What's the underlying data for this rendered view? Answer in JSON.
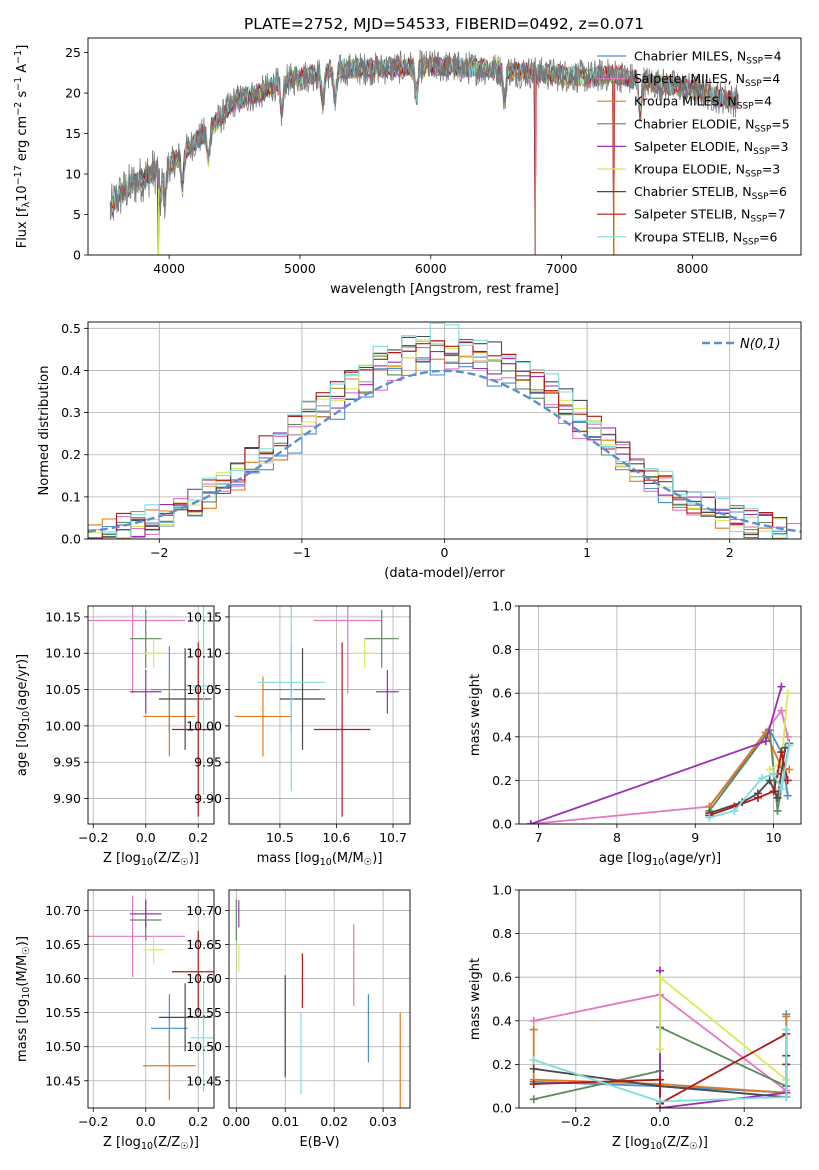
{
  "figure_title": "PLATE=2752, MJD=54533, FIBERID=0492, z=0.071",
  "chart_data": [
    {
      "id": "spectrum",
      "type": "line",
      "title": "PLATE=2752, MJD=54533, FIBERID=0492, z=0.071",
      "xlabel": "wavelength [Angstrom, rest frame]",
      "ylabel": "Flux [fλ10⁻¹⁷ erg cm⁻² s⁻¹ A⁻¹]",
      "xlim": [
        3380,
        8830
      ],
      "ylim": [
        0,
        26.8
      ],
      "xticks": [
        4000,
        5000,
        6000,
        7000,
        8000
      ],
      "yticks": [
        0,
        5,
        10,
        15,
        20,
        25
      ],
      "grid": false,
      "legend_position": "right",
      "continuum": [
        [
          3550,
          5.5
        ],
        [
          3600,
          7
        ],
        [
          3700,
          8.5
        ],
        [
          3800,
          9.5
        ],
        [
          3900,
          10.5
        ],
        [
          4000,
          11
        ],
        [
          4100,
          12.5
        ],
        [
          4200,
          14
        ],
        [
          4300,
          15.5
        ],
        [
          4400,
          17
        ],
        [
          4500,
          19
        ],
        [
          4600,
          19.5
        ],
        [
          4700,
          20
        ],
        [
          4800,
          21
        ],
        [
          4900,
          21.5
        ],
        [
          5000,
          22
        ],
        [
          5200,
          22.5
        ],
        [
          5400,
          23
        ],
        [
          5600,
          23
        ],
        [
          5800,
          23.2
        ],
        [
          6000,
          23.3
        ],
        [
          6200,
          23.2
        ],
        [
          6400,
          23
        ],
        [
          6600,
          22.8
        ],
        [
          6800,
          22.5
        ],
        [
          7000,
          22.2
        ],
        [
          7200,
          22
        ],
        [
          7400,
          22.3
        ],
        [
          7600,
          21.5
        ],
        [
          7800,
          21
        ],
        [
          8000,
          20.5
        ],
        [
          8200,
          19.5
        ],
        [
          8350,
          19
        ]
      ],
      "absorption_features": [
        [
          3934,
          9.5
        ],
        [
          3969,
          9
        ],
        [
          4102,
          12
        ],
        [
          4300,
          13.8
        ],
        [
          4861,
          18.2
        ],
        [
          5175,
          19.8
        ],
        [
          5270,
          21
        ],
        [
          5890,
          19.5
        ],
        [
          6563,
          20.6
        ],
        [
          7600,
          19.3
        ]
      ],
      "model_dropouts": [
        [
          3920,
          0
        ],
        [
          6800,
          0
        ],
        [
          7400,
          0
        ]
      ],
      "series": [
        {
          "name": "Chabrier MILES, N_SSP=4",
          "label_main": "Chabrier MILES, N",
          "label_sub": "SSP",
          "label_tail": "=4",
          "color": "#4a8fd0"
        },
        {
          "name": "Salpeter MILES, N_SSP=4",
          "label_main": "Salpeter MILES, N",
          "label_sub": "SSP",
          "label_tail": "=4",
          "color": "#e377c2"
        },
        {
          "name": "Kroupa MILES, N_SSP=4",
          "label_main": "Kroupa MILES, N",
          "label_sub": "SSP",
          "label_tail": "=4",
          "color": "#e07b1f"
        },
        {
          "name": "Chabrier ELODIE, N_SSP=5",
          "label_main": "Chabrier ELODIE, N",
          "label_sub": "SSP",
          "label_tail": "=5",
          "color": "#5b8a5e"
        },
        {
          "name": "Salpeter ELODIE, N_SSP=3",
          "label_main": "Salpeter ELODIE, N",
          "label_sub": "SSP",
          "label_tail": "=3",
          "color": "#9a30b0"
        },
        {
          "name": "Kroupa ELODIE, N_SSP=3",
          "label_main": "Kroupa ELODIE, N",
          "label_sub": "SSP",
          "label_tail": "=3",
          "color": "#d8ea5a"
        },
        {
          "name": "Chabrier STELIB, N_SSP=6",
          "label_main": "Chabrier STELIB, N",
          "label_sub": "SSP",
          "label_tail": "=6",
          "color": "#4a4a4a"
        },
        {
          "name": "Salpeter STELIB, N_SSP=7",
          "label_main": "Salpeter STELIB, N",
          "label_sub": "SSP",
          "label_tail": "=7",
          "color": "#b11a1a"
        },
        {
          "name": "Kroupa STELIB, N_SSP=6",
          "label_main": "Kroupa STELIB, N",
          "label_sub": "SSP",
          "label_tail": "=6",
          "color": "#7fdde0"
        }
      ]
    },
    {
      "id": "residuals",
      "type": "line",
      "xlabel": "(data-model)/error",
      "ylabel": "Normed distribution",
      "xlim": [
        -2.5,
        2.5
      ],
      "ylim": [
        0,
        0.515
      ],
      "xticks": [
        -2,
        -1,
        0,
        1,
        2
      ],
      "yticks": [
        0.0,
        0.1,
        0.2,
        0.3,
        0.4,
        0.5
      ],
      "grid": true,
      "legend_position": "top-right",
      "reference_label": "N(0,1)",
      "reference_color": "#5b8fd0",
      "histogram_bin_width": 0.1
    },
    {
      "id": "age_vs_Z",
      "type": "scatter",
      "xlabel": "Z [log10(Z/Z☉)]",
      "ylabel": "age  [log10(age/yr)]",
      "xlim": [
        -0.22,
        0.26
      ],
      "ylim": [
        9.865,
        10.165
      ],
      "xticks": [
        -0.2,
        0.0,
        0.2
      ],
      "yticks": [
        9.9,
        9.95,
        10.0,
        10.05,
        10.1,
        10.15
      ],
      "grid": true,
      "points": [
        {
          "x": 0.09,
          "y": 10.05,
          "xerr": 0.07,
          "yerr": 0.06
        },
        {
          "x": -0.05,
          "y": 10.145,
          "xerr": 0.2,
          "yerr": 0.1
        },
        {
          "x": 0.09,
          "y": 10.013,
          "xerr": 0.1,
          "yerr": 0.055
        },
        {
          "x": -0.0,
          "y": 10.12,
          "xerr": 0.06,
          "yerr": 0.04
        },
        {
          "x": -0.0,
          "y": 10.047,
          "xerr": 0.06,
          "yerr": 0.03
        },
        {
          "x": 0.03,
          "y": 10.1,
          "xerr": 0.04,
          "yerr": 0.02
        },
        {
          "x": 0.15,
          "y": 10.037,
          "xerr": 0.1,
          "yerr": 0.07
        },
        {
          "x": 0.2,
          "y": 9.995,
          "xerr": 0.1,
          "yerr": 0.12
        },
        {
          "x": 0.22,
          "y": 10.055,
          "xerr": 0.05,
          "yerr": 0.15
        }
      ]
    },
    {
      "id": "age_vs_mass",
      "type": "scatter",
      "xlabel": "mass [log10(M/M☉)]",
      "ylabel": "",
      "xlim": [
        10.41,
        10.73
      ],
      "ylim": [
        9.865,
        10.165
      ],
      "xticks": [
        10.5,
        10.6,
        10.7
      ],
      "yticks": [
        9.9,
        9.95,
        10.0,
        10.05,
        10.1,
        10.15
      ],
      "grid": true,
      "points": [
        {
          "x": 10.52,
          "y": 10.05,
          "xerr": 0.05,
          "yerr": 0.06
        },
        {
          "x": 10.62,
          "y": 10.145,
          "xerr": 0.06,
          "yerr": 0.1
        },
        {
          "x": 10.47,
          "y": 10.013,
          "xerr": 0.05,
          "yerr": 0.055
        },
        {
          "x": 10.68,
          "y": 10.12,
          "xerr": 0.03,
          "yerr": 0.04
        },
        {
          "x": 10.69,
          "y": 10.047,
          "xerr": 0.02,
          "yerr": 0.03
        },
        {
          "x": 10.65,
          "y": 10.1,
          "xerr": 0.02,
          "yerr": 0.02
        },
        {
          "x": 10.54,
          "y": 10.037,
          "xerr": 0.04,
          "yerr": 0.07
        },
        {
          "x": 10.61,
          "y": 9.995,
          "xerr": 0.05,
          "yerr": 0.12
        },
        {
          "x": 10.52,
          "y": 10.06,
          "xerr": 0.06,
          "yerr": 0.15
        }
      ]
    },
    {
      "id": "weight_vs_age",
      "type": "line",
      "xlabel": "age  [log10(age/yr)]",
      "ylabel": "mass weight",
      "xlim": [
        6.75,
        10.35
      ],
      "ylim": [
        0,
        1.0
      ],
      "xticks": [
        7,
        8,
        9,
        10
      ],
      "yticks": [
        0.0,
        0.2,
        0.4,
        0.6,
        0.8,
        1.0
      ],
      "grid": true,
      "series": [
        {
          "points": [
            [
              9.18,
              0.08
            ],
            [
              9.95,
              0.43
            ],
            [
              10.1,
              0.33
            ],
            [
              10.18,
              0.13
            ]
          ]
        },
        {
          "points": [
            [
              6.9,
              0.0
            ],
            [
              9.18,
              0.08
            ],
            [
              10.1,
              0.52
            ],
            [
              10.18,
              0.4
            ]
          ]
        },
        {
          "points": [
            [
              9.18,
              0.08
            ],
            [
              9.9,
              0.42
            ],
            [
              10.1,
              0.26
            ],
            [
              10.2,
              0.25
            ]
          ]
        },
        {
          "points": [
            [
              9.18,
              0.06
            ],
            [
              9.95,
              0.43
            ],
            [
              10.05,
              0.06
            ],
            [
              10.2,
              0.37
            ]
          ]
        },
        {
          "points": [
            [
              6.9,
              0.0
            ],
            [
              9.9,
              0.38
            ],
            [
              10.1,
              0.63
            ]
          ]
        },
        {
          "points": [
            [
              9.95,
              0.25
            ],
            [
              10.1,
              0.28
            ],
            [
              10.18,
              0.6
            ]
          ]
        },
        {
          "points": [
            [
              9.18,
              0.05
            ],
            [
              9.6,
              0.1
            ],
            [
              9.8,
              0.14
            ],
            [
              9.95,
              0.2
            ],
            [
              10.05,
              0.12
            ],
            [
              10.15,
              0.35
            ]
          ]
        },
        {
          "points": [
            [
              9.18,
              0.04
            ],
            [
              9.5,
              0.08
            ],
            [
              9.8,
              0.12
            ],
            [
              10.0,
              0.15
            ],
            [
              10.05,
              0.23
            ],
            [
              10.1,
              0.33
            ],
            [
              10.18,
              0.2
            ]
          ]
        },
        {
          "points": [
            [
              9.18,
              0.03
            ],
            [
              9.5,
              0.06
            ],
            [
              9.85,
              0.21
            ],
            [
              10.0,
              0.23
            ],
            [
              10.1,
              0.16
            ],
            [
              10.2,
              0.36
            ]
          ]
        }
      ]
    },
    {
      "id": "mass_vs_Z",
      "type": "scatter",
      "xlabel": "Z [log10(Z/Z☉)]",
      "ylabel": "mass [log10(M/M☉)]",
      "xlim": [
        -0.22,
        0.26
      ],
      "ylim": [
        10.41,
        10.73
      ],
      "xticks": [
        -0.2,
        0.0,
        0.2
      ],
      "yticks": [
        10.45,
        10.5,
        10.55,
        10.6,
        10.65,
        10.7
      ],
      "grid": true,
      "points": [
        {
          "x": 0.09,
          "y": 10.527,
          "xerr": 0.07,
          "yerr": 0.05
        },
        {
          "x": -0.05,
          "y": 10.662,
          "xerr": 0.2,
          "yerr": 0.06
        },
        {
          "x": 0.09,
          "y": 10.472,
          "xerr": 0.1,
          "yerr": 0.05
        },
        {
          "x": -0.0,
          "y": 10.686,
          "xerr": 0.06,
          "yerr": 0.03
        },
        {
          "x": -0.0,
          "y": 10.695,
          "xerr": 0.06,
          "yerr": 0.02
        },
        {
          "x": 0.03,
          "y": 10.642,
          "xerr": 0.04,
          "yerr": 0.02
        },
        {
          "x": 0.15,
          "y": 10.543,
          "xerr": 0.1,
          "yerr": 0.05
        },
        {
          "x": 0.2,
          "y": 10.61,
          "xerr": 0.1,
          "yerr": 0.06
        },
        {
          "x": 0.22,
          "y": 10.513,
          "xerr": 0.05,
          "yerr": 0.08
        }
      ]
    },
    {
      "id": "mass_vs_ebv",
      "type": "scatter",
      "xlabel": "E(B-V)",
      "ylabel": "",
      "xlim": [
        -0.0015,
        0.0355
      ],
      "ylim": [
        10.41,
        10.73
      ],
      "xticks": [
        0.0,
        0.01,
        0.02,
        0.03
      ],
      "yticks": [
        10.45,
        10.5,
        10.55,
        10.6,
        10.65,
        10.7
      ],
      "grid": true,
      "points": [
        {
          "x": 0.027,
          "y": 10.527,
          "xerr": 0,
          "yerr": 0.05
        },
        {
          "x": 0.024,
          "y": 10.62,
          "xerr": 0,
          "yerr": 0.06
        },
        {
          "x": 0.0335,
          "y": 10.48,
          "xerr": 0,
          "yerr": 0.07
        },
        {
          "x": 0.0,
          "y": 10.686,
          "xerr": 0,
          "yerr": 0.03
        },
        {
          "x": 0.0005,
          "y": 10.695,
          "xerr": 0,
          "yerr": 0.02
        },
        {
          "x": 0.0005,
          "y": 10.63,
          "xerr": 0,
          "yerr": 0.02
        },
        {
          "x": 0.01,
          "y": 10.53,
          "xerr": 0,
          "yerr": 0.075
        },
        {
          "x": 0.0135,
          "y": 10.597,
          "xerr": 0,
          "yerr": 0.04
        },
        {
          "x": 0.0132,
          "y": 10.49,
          "xerr": 0,
          "yerr": 0.06
        }
      ]
    },
    {
      "id": "weight_vs_Z",
      "type": "line",
      "xlabel": "Z [log10(Z/Z☉)]",
      "ylabel": "mass weight",
      "xlim": [
        -0.335,
        0.335
      ],
      "ylim": [
        0,
        1.0
      ],
      "xticks": [
        -0.2,
        0.0,
        0.2
      ],
      "yticks": [
        0.0,
        0.2,
        0.4,
        0.6,
        0.8,
        1.0
      ],
      "grid": true,
      "series": [
        {
          "points": [
            [
              -0.3,
              0.12
            ],
            [
              0.0,
              0.1
            ],
            [
              0.3,
              0.07
            ],
            [
              0.3,
              0.43
            ]
          ]
        },
        {
          "points": [
            [
              -0.3,
              0.4
            ],
            [
              0.0,
              0.52
            ],
            [
              0.3,
              0.08
            ]
          ]
        },
        {
          "points": [
            [
              -0.3,
              0.36
            ],
            [
              -0.3,
              0.13
            ],
            [
              0.0,
              0.11
            ],
            [
              0.3,
              0.07
            ],
            [
              0.3,
              0.42
            ]
          ]
        },
        {
          "points": [
            [
              -0.3,
              0.04
            ],
            [
              0.0,
              0.17
            ],
            [
              0.0,
              0.37
            ],
            [
              0.3,
              0.1
            ]
          ]
        },
        {
          "points": [
            [
              0.0,
              0.63
            ],
            [
              0.0,
              0.0
            ],
            [
              0.3,
              0.07
            ]
          ]
        },
        {
          "points": [
            [
              0.0,
              0.27
            ],
            [
              0.0,
              0.6
            ],
            [
              0.3,
              0.13
            ]
          ]
        },
        {
          "points": [
            [
              -0.3,
              0.18
            ],
            [
              0.0,
              0.1
            ],
            [
              0.3,
              0.05
            ],
            [
              0.3,
              0.24
            ]
          ]
        },
        {
          "points": [
            [
              -0.3,
              0.11
            ],
            [
              0.0,
              0.13
            ],
            [
              0.0,
              0.02
            ],
            [
              0.3,
              0.34
            ],
            [
              0.3,
              0.2
            ]
          ]
        },
        {
          "points": [
            [
              -0.3,
              0.22
            ],
            [
              0.0,
              0.03
            ],
            [
              0.3,
              0.05
            ],
            [
              0.3,
              0.36
            ]
          ]
        }
      ]
    }
  ]
}
